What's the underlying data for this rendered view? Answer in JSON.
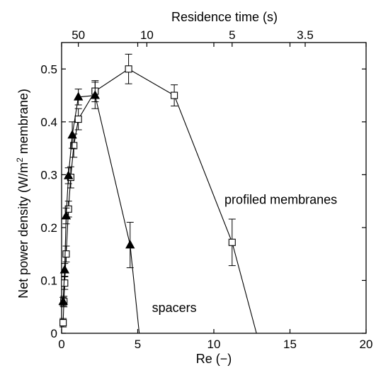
{
  "chart_data": {
    "type": "line",
    "xlabel": "Re (−)",
    "ylabel": "Net power density (W/m",
    "ylabel_sup": "2",
    "ylabel_tail": " membrane)",
    "top_xlabel": "Residence time (s)",
    "xlim": [
      0,
      20
    ],
    "ylim": [
      0,
      0.55
    ],
    "xticks": [
      0,
      5,
      10,
      15,
      20
    ],
    "yticks": [
      0,
      0.1,
      0.2,
      0.3,
      0.4,
      0.5
    ],
    "top_ticks": [
      {
        "label": "50",
        "re": 1.1
      },
      {
        "label": "10",
        "re": 5.6
      },
      {
        "label": "5",
        "re": 11.2
      },
      {
        "label": "3.5",
        "re": 16.0
      }
    ],
    "grid": false,
    "series": [
      {
        "name": "profiled membranes",
        "marker": "square-open",
        "x": [
          0.1,
          0.15,
          0.2,
          0.3,
          0.45,
          0.6,
          0.8,
          1.1,
          2.2,
          4.4,
          7.4,
          11.2,
          12.8
        ],
        "y": [
          0.02,
          0.06,
          0.095,
          0.15,
          0.235,
          0.295,
          0.355,
          0.405,
          0.458,
          0.5,
          0.45,
          0.172,
          0.0
        ],
        "err": [
          0.008,
          0.01,
          0.012,
          0.015,
          0.015,
          0.02,
          0.022,
          0.02,
          0.02,
          0.028,
          0.02,
          0.044,
          0
        ],
        "marked": [
          true,
          true,
          true,
          true,
          true,
          true,
          true,
          true,
          true,
          true,
          true,
          true,
          false
        ]
      },
      {
        "name": "spacers",
        "marker": "triangle-filled",
        "x": [
          0.1,
          0.2,
          0.3,
          0.45,
          0.7,
          1.1,
          2.2,
          4.5,
          5.1
        ],
        "y": [
          0.06,
          0.12,
          0.222,
          0.298,
          0.375,
          0.447,
          0.45,
          0.167,
          0.0
        ],
        "err": [
          0.008,
          0.012,
          0.015,
          0.015,
          0.025,
          0.015,
          0.025,
          0.043,
          0
        ],
        "marked": [
          true,
          true,
          true,
          true,
          true,
          true,
          true,
          true,
          false
        ]
      }
    ],
    "annotations": [
      {
        "text": "profiled membranes",
        "x": 14.4,
        "y": 0.245
      },
      {
        "text": "spacers",
        "x": 7.4,
        "y": 0.04
      }
    ]
  }
}
